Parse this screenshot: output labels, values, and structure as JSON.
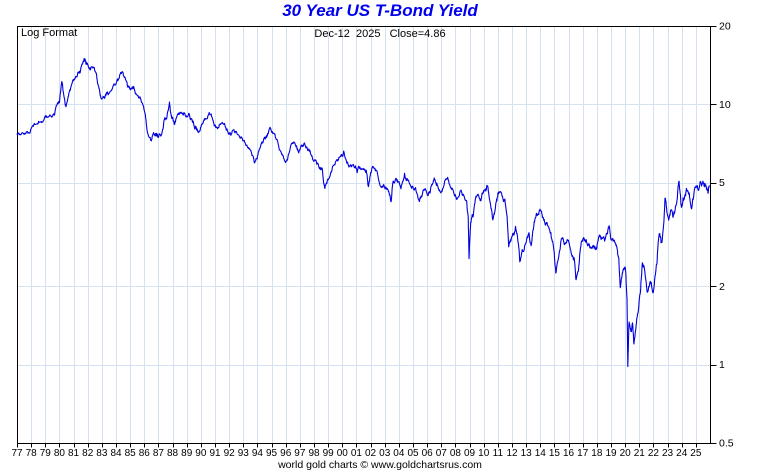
{
  "header": {
    "title": "30 Year US T-Bond Yield",
    "title_color": "#0000ee"
  },
  "chart": {
    "scale_label": "Log Format",
    "status_line": "Dec-12  2025   Close=4.86",
    "footer": "world gold charts © www.goldchartsrus.com",
    "line_color": "#0000dd",
    "grid_color": "#d3e1f1",
    "border_color": "#000000",
    "text_color": "#000000"
  },
  "chart_data": {
    "type": "line",
    "title": "30 Year US T-Bond Yield",
    "y_scale": "log",
    "x_range": [
      1977,
      2026
    ],
    "y_range": [
      0.5,
      20
    ],
    "grid": true,
    "legend_position": "none",
    "y_ticks": [
      {
        "label": "20",
        "value": 20
      },
      {
        "label": "10",
        "value": 10
      },
      {
        "label": "5",
        "value": 5
      },
      {
        "label": "2",
        "value": 2
      },
      {
        "label": "1",
        "value": 1
      },
      {
        "label": "0.5",
        "value": 0.5
      }
    ],
    "y_gridlines": [
      10,
      5,
      2,
      1
    ],
    "x_tick_labels": [
      "77",
      "78",
      "79",
      "80",
      "81",
      "82",
      "83",
      "84",
      "85",
      "86",
      "87",
      "88",
      "89",
      "90",
      "91",
      "92",
      "93",
      "94",
      "95",
      "96",
      "97",
      "98",
      "99",
      "00",
      "01",
      "02",
      "03",
      "04",
      "05",
      "06",
      "07",
      "08",
      "09",
      "10",
      "11",
      "12",
      "13",
      "14",
      "15",
      "16",
      "17",
      "18",
      "19",
      "20",
      "21",
      "22",
      "23",
      "24",
      "25"
    ],
    "last_close": {
      "date": "Dec-12 2025",
      "value": 4.86
    },
    "series": [
      {
        "name": "30 Year US T-Bond Yield (%)",
        "points": [
          [
            1977.0,
            7.7
          ],
          [
            1977.25,
            7.62
          ],
          [
            1977.5,
            7.7
          ],
          [
            1977.75,
            7.85
          ],
          [
            1978.0,
            8.05
          ],
          [
            1978.3,
            8.4
          ],
          [
            1978.6,
            8.55
          ],
          [
            1978.9,
            8.75
          ],
          [
            1979.1,
            8.95
          ],
          [
            1979.4,
            9.05
          ],
          [
            1979.65,
            9.1
          ],
          [
            1979.82,
            9.9
          ],
          [
            1980.0,
            10.2
          ],
          [
            1980.17,
            12.3
          ],
          [
            1980.35,
            10.6
          ],
          [
            1980.47,
            9.85
          ],
          [
            1980.7,
            11.2
          ],
          [
            1980.95,
            12.4
          ],
          [
            1981.15,
            12.8
          ],
          [
            1981.35,
            13.2
          ],
          [
            1981.55,
            14.0
          ],
          [
            1981.75,
            15.1
          ],
          [
            1981.87,
            14.3
          ],
          [
            1982.0,
            14.2
          ],
          [
            1982.2,
            13.6
          ],
          [
            1982.42,
            13.9
          ],
          [
            1982.6,
            13.2
          ],
          [
            1982.8,
            11.5
          ],
          [
            1982.97,
            10.5
          ],
          [
            1983.2,
            10.6
          ],
          [
            1983.45,
            10.9
          ],
          [
            1983.7,
            11.4
          ],
          [
            1983.95,
            11.9
          ],
          [
            1984.2,
            12.5
          ],
          [
            1984.45,
            13.4
          ],
          [
            1984.65,
            12.6
          ],
          [
            1984.85,
            11.7
          ],
          [
            1985.05,
            11.5
          ],
          [
            1985.25,
            11.75
          ],
          [
            1985.5,
            10.8
          ],
          [
            1985.75,
            10.5
          ],
          [
            1985.95,
            9.8
          ],
          [
            1986.1,
            8.9
          ],
          [
            1986.28,
            7.6
          ],
          [
            1986.5,
            7.25
          ],
          [
            1986.68,
            7.7
          ],
          [
            1986.85,
            7.6
          ],
          [
            1987.0,
            7.45
          ],
          [
            1987.2,
            7.6
          ],
          [
            1987.4,
            8.7
          ],
          [
            1987.6,
            8.95
          ],
          [
            1987.78,
            10.2
          ],
          [
            1987.92,
            9.0
          ],
          [
            1988.1,
            8.5
          ],
          [
            1988.3,
            8.95
          ],
          [
            1988.55,
            9.3
          ],
          [
            1988.75,
            9.05
          ],
          [
            1988.95,
            9.0
          ],
          [
            1989.15,
            9.25
          ],
          [
            1989.35,
            8.8
          ],
          [
            1989.55,
            8.1
          ],
          [
            1989.75,
            7.95
          ],
          [
            1989.95,
            8.0
          ],
          [
            1990.15,
            8.5
          ],
          [
            1990.4,
            8.75
          ],
          [
            1990.65,
            9.15
          ],
          [
            1990.85,
            8.7
          ],
          [
            1991.05,
            8.2
          ],
          [
            1991.3,
            8.3
          ],
          [
            1991.55,
            8.5
          ],
          [
            1991.8,
            7.95
          ],
          [
            1992.0,
            7.7
          ],
          [
            1992.25,
            7.95
          ],
          [
            1992.5,
            7.85
          ],
          [
            1992.75,
            7.5
          ],
          [
            1993.0,
            7.3
          ],
          [
            1993.25,
            6.95
          ],
          [
            1993.5,
            6.7
          ],
          [
            1993.65,
            6.35
          ],
          [
            1993.8,
            5.95
          ],
          [
            1994.0,
            6.3
          ],
          [
            1994.25,
            7.0
          ],
          [
            1994.5,
            7.45
          ],
          [
            1994.7,
            7.6
          ],
          [
            1994.88,
            8.15
          ],
          [
            1995.05,
            7.85
          ],
          [
            1995.3,
            7.4
          ],
          [
            1995.55,
            6.7
          ],
          [
            1995.8,
            6.4
          ],
          [
            1996.0,
            6.05
          ],
          [
            1996.25,
            6.55
          ],
          [
            1996.5,
            7.1
          ],
          [
            1996.7,
            6.95
          ],
          [
            1996.92,
            6.55
          ],
          [
            1997.15,
            6.95
          ],
          [
            1997.3,
            7.1
          ],
          [
            1997.55,
            6.7
          ],
          [
            1997.78,
            6.4
          ],
          [
            1997.95,
            6.05
          ],
          [
            1998.2,
            5.9
          ],
          [
            1998.45,
            5.7
          ],
          [
            1998.6,
            5.55
          ],
          [
            1998.77,
            4.75
          ],
          [
            1998.95,
            5.15
          ],
          [
            1999.2,
            5.5
          ],
          [
            1999.45,
            5.85
          ],
          [
            1999.7,
            6.1
          ],
          [
            1999.95,
            6.4
          ],
          [
            2000.1,
            6.6
          ],
          [
            2000.35,
            6.0
          ],
          [
            2000.6,
            5.85
          ],
          [
            2000.85,
            5.7
          ],
          [
            2001.05,
            5.5
          ],
          [
            2001.25,
            5.75
          ],
          [
            2001.5,
            5.65
          ],
          [
            2001.7,
            5.55
          ],
          [
            2001.85,
            4.85
          ],
          [
            2002.0,
            5.45
          ],
          [
            2002.25,
            5.7
          ],
          [
            2002.5,
            5.4
          ],
          [
            2002.75,
            4.8
          ],
          [
            2002.95,
            4.9
          ],
          [
            2003.15,
            4.7
          ],
          [
            2003.3,
            4.6
          ],
          [
            2003.45,
            4.2
          ],
          [
            2003.6,
            5.05
          ],
          [
            2003.78,
            5.2
          ],
          [
            2003.95,
            5.05
          ],
          [
            2004.15,
            4.75
          ],
          [
            2004.4,
            5.4
          ],
          [
            2004.6,
            5.15
          ],
          [
            2004.85,
            4.85
          ],
          [
            2005.05,
            4.7
          ],
          [
            2005.25,
            4.55
          ],
          [
            2005.45,
            4.25
          ],
          [
            2005.65,
            4.5
          ],
          [
            2005.9,
            4.7
          ],
          [
            2006.1,
            4.55
          ],
          [
            2006.3,
            4.85
          ],
          [
            2006.5,
            5.2
          ],
          [
            2006.7,
            4.95
          ],
          [
            2006.92,
            4.6
          ],
          [
            2007.15,
            4.8
          ],
          [
            2007.4,
            5.2
          ],
          [
            2007.6,
            4.9
          ],
          [
            2007.8,
            4.7
          ],
          [
            2007.97,
            4.45
          ],
          [
            2008.15,
            4.35
          ],
          [
            2008.4,
            4.7
          ],
          [
            2008.6,
            4.45
          ],
          [
            2008.78,
            4.3
          ],
          [
            2008.9,
            3.7
          ],
          [
            2008.96,
            2.55
          ],
          [
            2009.08,
            3.5
          ],
          [
            2009.25,
            3.7
          ],
          [
            2009.45,
            4.4
          ],
          [
            2009.6,
            4.5
          ],
          [
            2009.8,
            4.25
          ],
          [
            2009.97,
            4.6
          ],
          [
            2010.15,
            4.65
          ],
          [
            2010.3,
            4.8
          ],
          [
            2010.48,
            4.15
          ],
          [
            2010.65,
            3.6
          ],
          [
            2010.82,
            3.95
          ],
          [
            2010.97,
            4.4
          ],
          [
            2011.1,
            4.6
          ],
          [
            2011.3,
            4.45
          ],
          [
            2011.5,
            4.3
          ],
          [
            2011.65,
            3.7
          ],
          [
            2011.77,
            2.85
          ],
          [
            2011.92,
            3.0
          ],
          [
            2012.1,
            3.2
          ],
          [
            2012.25,
            3.4
          ],
          [
            2012.42,
            3.0
          ],
          [
            2012.55,
            2.5
          ],
          [
            2012.72,
            2.75
          ],
          [
            2012.9,
            2.85
          ],
          [
            2013.05,
            3.05
          ],
          [
            2013.2,
            3.2
          ],
          [
            2013.35,
            2.85
          ],
          [
            2013.5,
            3.3
          ],
          [
            2013.65,
            3.65
          ],
          [
            2013.8,
            3.75
          ],
          [
            2013.97,
            3.95
          ],
          [
            2014.15,
            3.65
          ],
          [
            2014.35,
            3.45
          ],
          [
            2014.55,
            3.4
          ],
          [
            2014.75,
            3.2
          ],
          [
            2014.95,
            2.8
          ],
          [
            2015.1,
            2.25
          ],
          [
            2015.3,
            2.6
          ],
          [
            2015.5,
            3.05
          ],
          [
            2015.7,
            2.9
          ],
          [
            2015.9,
            3.0
          ],
          [
            2016.05,
            2.9
          ],
          [
            2016.25,
            2.6
          ],
          [
            2016.4,
            2.55
          ],
          [
            2016.53,
            2.12
          ],
          [
            2016.7,
            2.3
          ],
          [
            2016.88,
            2.9
          ],
          [
            2017.05,
            3.05
          ],
          [
            2017.25,
            3.0
          ],
          [
            2017.45,
            2.9
          ],
          [
            2017.65,
            2.8
          ],
          [
            2017.85,
            2.85
          ],
          [
            2018.0,
            2.8
          ],
          [
            2018.15,
            3.1
          ],
          [
            2018.35,
            3.05
          ],
          [
            2018.55,
            3.0
          ],
          [
            2018.75,
            3.2
          ],
          [
            2018.87,
            3.4
          ],
          [
            2019.0,
            3.0
          ],
          [
            2019.2,
            3.0
          ],
          [
            2019.4,
            2.85
          ],
          [
            2019.55,
            2.55
          ],
          [
            2019.66,
            1.97
          ],
          [
            2019.8,
            2.25
          ],
          [
            2019.95,
            2.35
          ],
          [
            2020.05,
            2.25
          ],
          [
            2020.13,
            1.8
          ],
          [
            2020.19,
            0.99
          ],
          [
            2020.27,
            1.45
          ],
          [
            2020.4,
            1.35
          ],
          [
            2020.52,
            1.45
          ],
          [
            2020.62,
            1.2
          ],
          [
            2020.8,
            1.45
          ],
          [
            2020.95,
            1.65
          ],
          [
            2021.08,
            1.9
          ],
          [
            2021.22,
            2.45
          ],
          [
            2021.38,
            2.3
          ],
          [
            2021.55,
            1.9
          ],
          [
            2021.7,
            2.0
          ],
          [
            2021.85,
            2.05
          ],
          [
            2021.97,
            1.9
          ],
          [
            2022.1,
            2.15
          ],
          [
            2022.25,
            2.45
          ],
          [
            2022.38,
            3.1
          ],
          [
            2022.5,
            3.1
          ],
          [
            2022.6,
            2.95
          ],
          [
            2022.72,
            3.45
          ],
          [
            2022.82,
            4.35
          ],
          [
            2022.93,
            3.95
          ],
          [
            2023.08,
            3.6
          ],
          [
            2023.22,
            3.95
          ],
          [
            2023.38,
            3.7
          ],
          [
            2023.52,
            3.9
          ],
          [
            2023.68,
            4.3
          ],
          [
            2023.8,
            5.05
          ],
          [
            2023.9,
            4.5
          ],
          [
            2023.99,
            4.0
          ],
          [
            2024.1,
            4.35
          ],
          [
            2024.22,
            4.45
          ],
          [
            2024.33,
            4.75
          ],
          [
            2024.5,
            4.55
          ],
          [
            2024.58,
            4.35
          ],
          [
            2024.7,
            3.95
          ],
          [
            2024.85,
            4.45
          ],
          [
            2024.97,
            4.8
          ],
          [
            2025.08,
            4.85
          ],
          [
            2025.2,
            4.7
          ],
          [
            2025.33,
            5.08
          ],
          [
            2025.45,
            4.95
          ],
          [
            2025.58,
            4.85
          ],
          [
            2025.7,
            4.9
          ],
          [
            2025.8,
            4.7
          ],
          [
            2025.88,
            4.6
          ],
          [
            2025.95,
            4.86
          ]
        ]
      }
    ]
  }
}
